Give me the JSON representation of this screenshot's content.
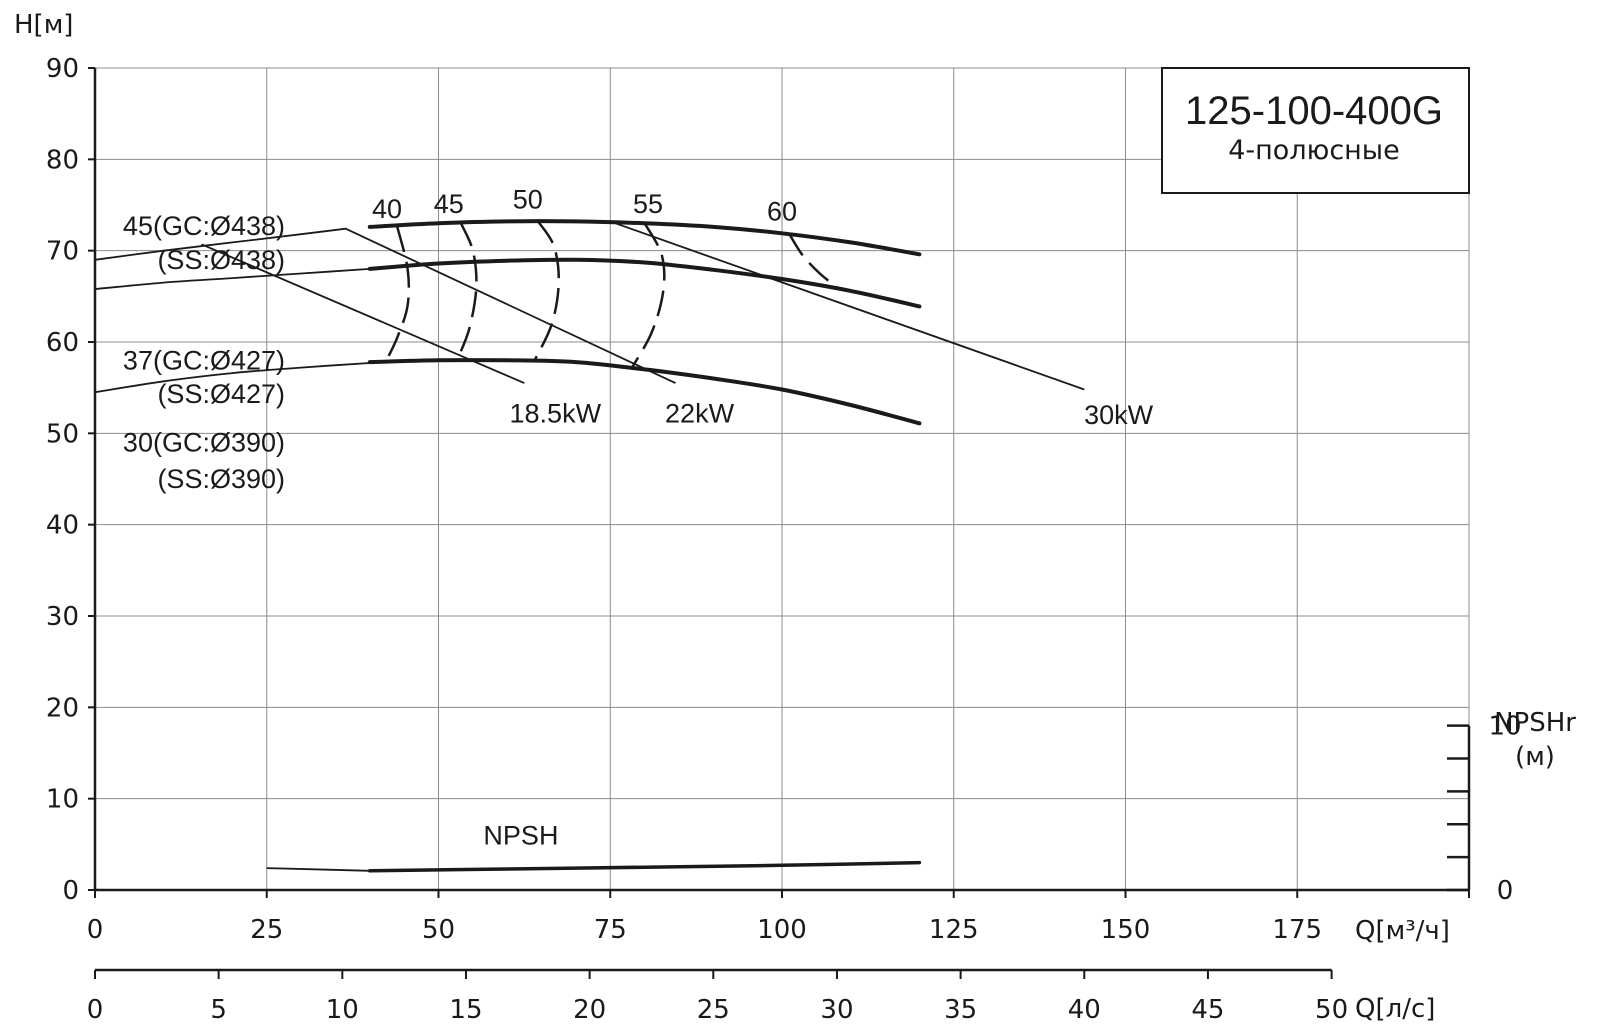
{
  "chart_data": {
    "type": "line",
    "title": "125-100-400G",
    "subtitle": "4-полюсные",
    "ylabel": "H[м]",
    "xlabel": "Q[м³/ч]",
    "x2label": "Q[л/с]",
    "npsh_axis_label": [
      "NPSHr",
      "(м)"
    ],
    "xlim": [
      0,
      200
    ],
    "ylim": [
      0,
      90
    ],
    "x_ticks": [
      0,
      25,
      50,
      75,
      100,
      125,
      150,
      175
    ],
    "x_tick_labels": [
      "0",
      "25",
      "50",
      "75",
      "100",
      "125",
      "150",
      "175"
    ],
    "x2_ticks": [
      0,
      5,
      10,
      15,
      20,
      25,
      30,
      35,
      40,
      45,
      50
    ],
    "x2_tick_labels": [
      "0",
      "5",
      "10",
      "15",
      "20",
      "25",
      "30",
      "35",
      "40",
      "45",
      "50"
    ],
    "x2lim": [
      0,
      50
    ],
    "y_ticks": [
      0,
      10,
      20,
      30,
      40,
      50,
      60,
      70,
      80,
      90
    ],
    "y_tick_labels": [
      "0",
      "10",
      "20",
      "30",
      "40",
      "50",
      "60",
      "70",
      "80",
      "90"
    ],
    "npsh_ticks": [
      0,
      2,
      4,
      6,
      8,
      10
    ],
    "npsh_tick_labels": [
      "0",
      "10"
    ],
    "npsh_label_values": [
      0,
      10
    ],
    "npsh_ylim": [
      0,
      50
    ],
    "grid": true,
    "series": [
      {
        "name": "45(GC:Ø438)",
        "name2": "(SS:Ø438)",
        "style": "thin",
        "x": [
          0,
          10,
          20,
          30,
          36.5
        ],
        "y": [
          69.0,
          70.0,
          70.9,
          71.8,
          72.4
        ]
      },
      {
        "name": "",
        "style": "bold",
        "x": [
          40,
          50,
          60,
          70,
          80,
          90,
          100,
          110,
          120
        ],
        "y": [
          72.6,
          73.0,
          73.2,
          73.2,
          73.0,
          72.6,
          71.9,
          70.9,
          69.6
        ]
      },
      {
        "name": "37(GC:Ø427)",
        "name2": "(SS:Ø427)",
        "style": "thin",
        "x": [
          0,
          10,
          20,
          30,
          40
        ],
        "y": [
          65.8,
          66.5,
          67.0,
          67.5,
          68.0
        ]
      },
      {
        "name": "",
        "style": "bold",
        "x": [
          40,
          50,
          60,
          70,
          80,
          90,
          100,
          110,
          120
        ],
        "y": [
          68.0,
          68.6,
          68.9,
          69.0,
          68.7,
          67.9,
          66.9,
          65.6,
          63.9
        ]
      },
      {
        "name": "30(GC:Ø390)",
        "name2": "(SS:Ø390)",
        "style": "thin",
        "x": [
          0,
          10,
          20,
          30,
          40
        ],
        "y": [
          54.5,
          55.7,
          56.6,
          57.2,
          57.7
        ]
      },
      {
        "name": "",
        "style": "bold",
        "x": [
          40,
          50,
          60,
          70,
          80,
          90,
          100,
          110,
          120
        ],
        "y": [
          57.8,
          58.0,
          58.0,
          57.8,
          57.0,
          56.0,
          54.8,
          53.1,
          51.1
        ]
      }
    ],
    "power_lines": [
      {
        "label": "18.5kW",
        "x": [
          15.5,
          62.5
        ],
        "y": [
          70.7,
          55.5
        ],
        "label_at": [
          67,
          51.2
        ]
      },
      {
        "label": "22kW",
        "x": [
          36.5,
          84.5
        ],
        "y": [
          72.4,
          55.5
        ],
        "label_at": [
          88,
          51.2
        ]
      },
      {
        "label": "30kW",
        "x": [
          75,
          144
        ],
        "y": [
          73.2,
          54.8
        ],
        "label_at": [
          149,
          51.0
        ]
      }
    ],
    "efficiency_curves": [
      {
        "label": "40",
        "x": [
          44.0,
          45.5,
          45.5,
          44.0,
          42.3
        ],
        "y": [
          72.6,
          68.0,
          64.0,
          60.5,
          57.8
        ],
        "label_at": [
          42.5,
          73.6
        ]
      },
      {
        "label": "45",
        "x": [
          53.2,
          55.0,
          55.5,
          54.5,
          52.7
        ],
        "y": [
          73.1,
          70.0,
          66.0,
          61.5,
          58.0
        ],
        "label_at": [
          51.5,
          74.1
        ]
      },
      {
        "label": "50",
        "x": [
          64.5,
          66.8,
          67.5,
          66.5,
          64.0
        ],
        "y": [
          73.2,
          70.5,
          66.5,
          62.0,
          58.0
        ],
        "label_at": [
          63.0,
          74.6
        ]
      },
      {
        "label": "55",
        "x": [
          80.0,
          82.5,
          82.7,
          81.0,
          78.0
        ],
        "y": [
          73.0,
          69.5,
          65.5,
          61.0,
          57.0
        ],
        "label_at": [
          80.5,
          74.1
        ]
      },
      {
        "label": "60",
        "x": [
          101.0,
          103.0,
          105.5,
          108.0
        ],
        "y": [
          71.9,
          69.5,
          67.5,
          66.0
        ],
        "label_at": [
          100,
          73.3
        ]
      }
    ],
    "npsh": {
      "label": "NPSH",
      "label_at": [
        62,
        5.0
      ],
      "thin": {
        "x": [
          25,
          40
        ],
        "y": [
          2.4,
          2.1
        ]
      },
      "bold": {
        "x": [
          40,
          60,
          80,
          100,
          120
        ],
        "y": [
          2.1,
          2.3,
          2.5,
          2.7,
          3.0
        ]
      }
    }
  }
}
